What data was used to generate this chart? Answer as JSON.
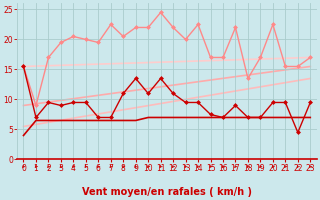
{
  "background_color": "#cce8ec",
  "grid_color": "#aacccc",
  "xlim": [
    -0.5,
    23.5
  ],
  "ylim": [
    0,
    26
  ],
  "xlabel": "Vent moyen/en rafales ( km/h )",
  "xlabel_color": "#cc0000",
  "yticks": [
    0,
    5,
    10,
    15,
    20,
    25
  ],
  "xticks": [
    0,
    1,
    2,
    3,
    4,
    5,
    6,
    7,
    8,
    9,
    10,
    11,
    12,
    13,
    14,
    15,
    16,
    17,
    18,
    19,
    20,
    21,
    22,
    23
  ],
  "line_dark_red": {
    "x": [
      0,
      1,
      2,
      3,
      4,
      5,
      6,
      7,
      8,
      9,
      10,
      11,
      12,
      13,
      14,
      15,
      16,
      17,
      18,
      19,
      20,
      21,
      22,
      23
    ],
    "y": [
      15.5,
      7.0,
      9.5,
      9.0,
      9.5,
      9.5,
      7.0,
      7.0,
      11.0,
      13.5,
      11.0,
      13.5,
      11.0,
      9.5,
      9.5,
      7.5,
      7.0,
      9.0,
      7.0,
      7.0,
      9.5,
      9.5,
      4.5,
      9.5
    ],
    "color": "#cc0000",
    "lw": 1.0,
    "ms": 2.5
  },
  "line_flat_dark": {
    "x": [
      0,
      1,
      2,
      3,
      4,
      5,
      6,
      7,
      8,
      9,
      10,
      11,
      12,
      13,
      14,
      15,
      16,
      17,
      18,
      19,
      20,
      21,
      22,
      23
    ],
    "y": [
      4.0,
      6.5,
      6.5,
      6.5,
      6.5,
      6.5,
      6.5,
      6.5,
      6.5,
      6.5,
      7.0,
      7.0,
      7.0,
      7.0,
      7.0,
      7.0,
      7.0,
      7.0,
      7.0,
      7.0,
      7.0,
      7.0,
      7.0,
      7.0
    ],
    "color": "#cc0000",
    "lw": 1.2
  },
  "line_light_pink": {
    "x": [
      0,
      1,
      2,
      3,
      4,
      5,
      6,
      7,
      8,
      9,
      10,
      11,
      12,
      13,
      14,
      15,
      16,
      17,
      18,
      19,
      20,
      21,
      22,
      23
    ],
    "y": [
      15.5,
      9.0,
      17.0,
      19.5,
      20.5,
      20.0,
      19.5,
      22.5,
      20.5,
      22.0,
      22.0,
      24.5,
      22.0,
      20.0,
      22.5,
      17.0,
      17.0,
      22.0,
      13.5,
      17.0,
      22.5,
      15.5,
      15.5,
      17.0
    ],
    "color": "#ff8888",
    "lw": 1.0,
    "ms": 2.5
  },
  "trend1": {
    "x": [
      0,
      23
    ],
    "y": [
      5.5,
      13.5
    ],
    "color": "#ffbbbb",
    "lw": 1.2
  },
  "trend2": {
    "x": [
      0,
      23
    ],
    "y": [
      9.0,
      15.5
    ],
    "color": "#ffaaaa",
    "lw": 1.2
  },
  "trend3": {
    "x": [
      0,
      23
    ],
    "y": [
      15.5,
      17.0
    ],
    "color": "#ffcccc",
    "lw": 1.2
  },
  "arrow_color": "#cc0000",
  "tick_color": "#cc0000",
  "tick_fontsize": 5.5,
  "xlabel_fontsize": 7.0
}
